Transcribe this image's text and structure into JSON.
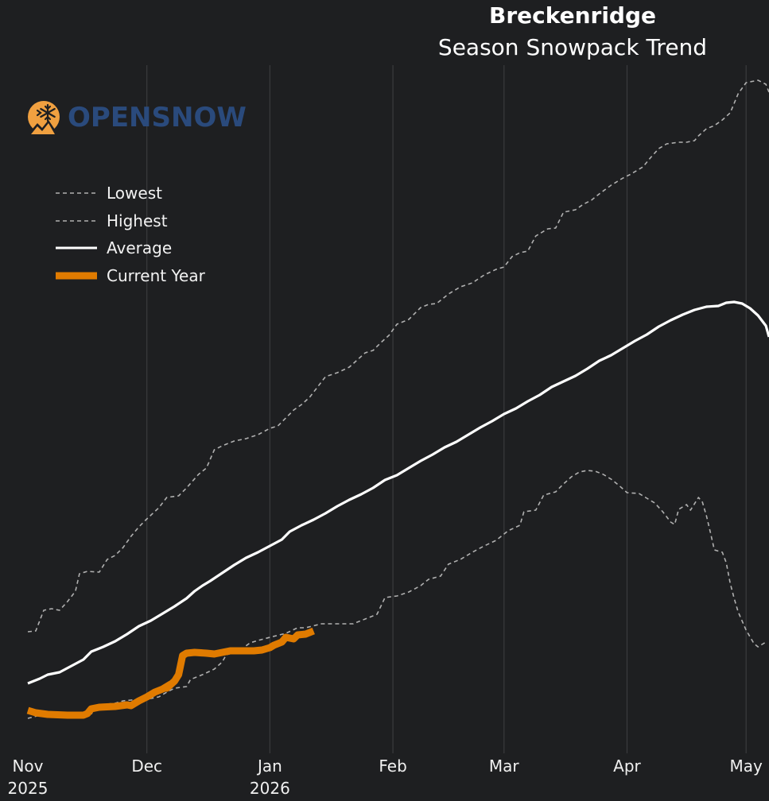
{
  "logo": {
    "text": "OPENSNOW",
    "icon": "snowflake-mountain-icon",
    "text_color": "#2a4a7c",
    "icon_color": "#f0a040"
  },
  "chart_data": {
    "type": "line",
    "title": "Breckenridge",
    "subtitle": "Season Snowpack Trend",
    "xlabel": "",
    "ylabel": "",
    "x_unit": "days since Nov 1, 2025",
    "y_unit": "relative snowpack (no axis scale shown)",
    "xlim": [
      0,
      187
    ],
    "ylim": [
      0,
      86
    ],
    "grid": "vertical",
    "legend_position": "top-left",
    "x_ticks": [
      {
        "day": 0,
        "label": "Nov",
        "sublabel": "2025"
      },
      {
        "day": 30,
        "label": "Dec",
        "sublabel": ""
      },
      {
        "day": 61,
        "label": "Jan",
        "sublabel": "2026"
      },
      {
        "day": 92,
        "label": "Feb",
        "sublabel": ""
      },
      {
        "day": 120,
        "label": "Mar",
        "sublabel": ""
      },
      {
        "day": 151,
        "label": "Apr",
        "sublabel": ""
      },
      {
        "day": 181,
        "label": "May",
        "sublabel": ""
      }
    ],
    "colors": {
      "background": "#1e1f21",
      "grid": "#3a3b3d",
      "lowest": "#b0b0b0",
      "highest": "#b0b0b0",
      "average": "#ffffff",
      "current": "#e07b00"
    },
    "series": [
      {
        "name": "Lowest",
        "style": "dashed",
        "points": [
          [
            0,
            3.6
          ],
          [
            3,
            4.0
          ],
          [
            6,
            3.8
          ],
          [
            10,
            3.8
          ],
          [
            14,
            4.0
          ],
          [
            16,
            4.1
          ],
          [
            17,
            5.2
          ],
          [
            20,
            5.4
          ],
          [
            22,
            5.5
          ],
          [
            24,
            5.8
          ],
          [
            26,
            5.9
          ],
          [
            28,
            6.0
          ],
          [
            30,
            6.0
          ],
          [
            33,
            6.3
          ],
          [
            35,
            6.9
          ],
          [
            37,
            7.4
          ],
          [
            40,
            7.6
          ],
          [
            41,
            8.5
          ],
          [
            44,
            9.1
          ],
          [
            47,
            9.8
          ],
          [
            49,
            10.7
          ],
          [
            50,
            11.6
          ],
          [
            53,
            12.0
          ],
          [
            56,
            13.1
          ],
          [
            58,
            13.4
          ],
          [
            61,
            13.8
          ],
          [
            65,
            14.3
          ],
          [
            68,
            15.0
          ],
          [
            70,
            15.0
          ],
          [
            74,
            15.5
          ],
          [
            78,
            15.5
          ],
          [
            82,
            15.5
          ],
          [
            86,
            16.3
          ],
          [
            88,
            16.7
          ],
          [
            90,
            18.8
          ],
          [
            93,
            19.0
          ],
          [
            96,
            19.5
          ],
          [
            99,
            20.3
          ],
          [
            101,
            21.1
          ],
          [
            104,
            21.5
          ],
          [
            106,
            23.0
          ],
          [
            109,
            23.6
          ],
          [
            112,
            24.5
          ],
          [
            115,
            25.3
          ],
          [
            118,
            26.0
          ],
          [
            121,
            27.2
          ],
          [
            124,
            27.9
          ],
          [
            125,
            29.6
          ],
          [
            128,
            29.8
          ],
          [
            130,
            31.7
          ],
          [
            133,
            32.1
          ],
          [
            135,
            33.1
          ],
          [
            137,
            34.0
          ],
          [
            139,
            34.6
          ],
          [
            141,
            34.8
          ],
          [
            143,
            34.7
          ],
          [
            145,
            34.3
          ],
          [
            147,
            33.7
          ],
          [
            149,
            32.9
          ],
          [
            151,
            32.0
          ],
          [
            154,
            31.9
          ],
          [
            156,
            31.3
          ],
          [
            158,
            30.7
          ],
          [
            160,
            29.6
          ],
          [
            162,
            28.3
          ],
          [
            163,
            28.0
          ],
          [
            164,
            29.9
          ],
          [
            166,
            30.5
          ],
          [
            167,
            29.8
          ],
          [
            169,
            31.4
          ],
          [
            170,
            30.8
          ],
          [
            171,
            29.1
          ],
          [
            172,
            27.0
          ],
          [
            173,
            24.8
          ],
          [
            175,
            24.5
          ],
          [
            176,
            23.2
          ],
          [
            177,
            20.6
          ],
          [
            178,
            18.7
          ],
          [
            179,
            17.0
          ],
          [
            181,
            14.7
          ],
          [
            183,
            13.0
          ],
          [
            184,
            12.6
          ],
          [
            186,
            13.2
          ]
        ]
      },
      {
        "name": "Highest",
        "style": "dashed",
        "points": [
          [
            0,
            14.5
          ],
          [
            2,
            14.6
          ],
          [
            4,
            17.2
          ],
          [
            6,
            17.4
          ],
          [
            8,
            17.2
          ],
          [
            10,
            18.3
          ],
          [
            12,
            19.6
          ],
          [
            13,
            21.8
          ],
          [
            15,
            22.1
          ],
          [
            18,
            22.0
          ],
          [
            20,
            23.6
          ],
          [
            22,
            24.1
          ],
          [
            24,
            25.1
          ],
          [
            26,
            26.5
          ],
          [
            28,
            27.7
          ],
          [
            30,
            28.7
          ],
          [
            33,
            30.1
          ],
          [
            35,
            31.4
          ],
          [
            38,
            31.6
          ],
          [
            40,
            32.6
          ],
          [
            43,
            34.3
          ],
          [
            45,
            35.1
          ],
          [
            47,
            37.4
          ],
          [
            49,
            37.9
          ],
          [
            52,
            38.5
          ],
          [
            55,
            38.8
          ],
          [
            58,
            39.3
          ],
          [
            61,
            40.1
          ],
          [
            63,
            40.4
          ],
          [
            65,
            41.4
          ],
          [
            67,
            42.4
          ],
          [
            69,
            43.1
          ],
          [
            71,
            44.0
          ],
          [
            73,
            45.3
          ],
          [
            75,
            46.6
          ],
          [
            78,
            47.1
          ],
          [
            81,
            47.8
          ],
          [
            85,
            49.6
          ],
          [
            87,
            49.9
          ],
          [
            89,
            50.9
          ],
          [
            91,
            51.8
          ],
          [
            93,
            53.2
          ],
          [
            96,
            53.8
          ],
          [
            99,
            55.3
          ],
          [
            101,
            55.7
          ],
          [
            103,
            55.8
          ],
          [
            106,
            57.0
          ],
          [
            109,
            57.9
          ],
          [
            112,
            58.4
          ],
          [
            115,
            59.4
          ],
          [
            118,
            60.1
          ],
          [
            120,
            60.4
          ],
          [
            122,
            61.7
          ],
          [
            124,
            62.2
          ],
          [
            126,
            62.4
          ],
          [
            128,
            64.3
          ],
          [
            131,
            65.2
          ],
          [
            133,
            65.3
          ],
          [
            135,
            67.3
          ],
          [
            138,
            67.6
          ],
          [
            140,
            68.3
          ],
          [
            142,
            68.8
          ],
          [
            144,
            69.6
          ],
          [
            147,
            70.7
          ],
          [
            150,
            71.6
          ],
          [
            152,
            72.1
          ],
          [
            155,
            73.0
          ],
          [
            157,
            74.2
          ],
          [
            159,
            75.3
          ],
          [
            161,
            75.9
          ],
          [
            164,
            76.1
          ],
          [
            166,
            76.1
          ],
          [
            168,
            76.3
          ],
          [
            169,
            76.9
          ],
          [
            171,
            77.8
          ],
          [
            173,
            78.2
          ],
          [
            175,
            78.9
          ],
          [
            177,
            79.8
          ],
          [
            178,
            81.0
          ],
          [
            179,
            82.2
          ],
          [
            181,
            83.6
          ],
          [
            184,
            83.9
          ],
          [
            186,
            83.4
          ],
          [
            187,
            82.4
          ]
        ]
      },
      {
        "name": "Average",
        "style": "solid",
        "points": [
          [
            0,
            8.0
          ],
          [
            3,
            8.6
          ],
          [
            5,
            9.1
          ],
          [
            8,
            9.4
          ],
          [
            11,
            10.2
          ],
          [
            14,
            11.0
          ],
          [
            16,
            12.0
          ],
          [
            19,
            12.6
          ],
          [
            22,
            13.3
          ],
          [
            25,
            14.2
          ],
          [
            28,
            15.2
          ],
          [
            31,
            15.9
          ],
          [
            34,
            16.8
          ],
          [
            37,
            17.7
          ],
          [
            40,
            18.7
          ],
          [
            42,
            19.6
          ],
          [
            44,
            20.3
          ],
          [
            46,
            20.9
          ],
          [
            49,
            21.9
          ],
          [
            52,
            22.9
          ],
          [
            55,
            23.8
          ],
          [
            58,
            24.5
          ],
          [
            61,
            25.3
          ],
          [
            64,
            26.1
          ],
          [
            66,
            27.1
          ],
          [
            69,
            27.9
          ],
          [
            72,
            28.6
          ],
          [
            75,
            29.4
          ],
          [
            78,
            30.3
          ],
          [
            81,
            31.1
          ],
          [
            84,
            31.8
          ],
          [
            87,
            32.6
          ],
          [
            90,
            33.6
          ],
          [
            93,
            34.2
          ],
          [
            96,
            35.1
          ],
          [
            99,
            36.0
          ],
          [
            102,
            36.8
          ],
          [
            105,
            37.7
          ],
          [
            108,
            38.4
          ],
          [
            111,
            39.3
          ],
          [
            114,
            40.2
          ],
          [
            117,
            41.0
          ],
          [
            120,
            41.9
          ],
          [
            123,
            42.6
          ],
          [
            126,
            43.5
          ],
          [
            129,
            44.3
          ],
          [
            132,
            45.3
          ],
          [
            135,
            46.0
          ],
          [
            138,
            46.7
          ],
          [
            141,
            47.6
          ],
          [
            144,
            48.6
          ],
          [
            147,
            49.3
          ],
          [
            150,
            50.2
          ],
          [
            153,
            51.1
          ],
          [
            156,
            51.9
          ],
          [
            159,
            52.9
          ],
          [
            162,
            53.7
          ],
          [
            165,
            54.4
          ],
          [
            168,
            55.0
          ],
          [
            171,
            55.4
          ],
          [
            174,
            55.5
          ],
          [
            176,
            55.9
          ],
          [
            178,
            56.0
          ],
          [
            180,
            55.8
          ],
          [
            182,
            55.2
          ],
          [
            184,
            54.3
          ],
          [
            186,
            53.0
          ],
          [
            187,
            51.6
          ]
        ]
      },
      {
        "name": "Current Year",
        "style": "solid-thick",
        "points": [
          [
            0,
            4.6
          ],
          [
            2,
            4.3
          ],
          [
            5,
            4.1
          ],
          [
            10,
            4.0
          ],
          [
            14,
            4.0
          ],
          [
            15,
            4.2
          ],
          [
            16,
            4.8
          ],
          [
            18,
            5.0
          ],
          [
            22,
            5.1
          ],
          [
            25,
            5.3
          ],
          [
            26,
            5.2
          ],
          [
            28,
            5.8
          ],
          [
            30,
            6.3
          ],
          [
            32,
            6.9
          ],
          [
            34,
            7.3
          ],
          [
            36,
            7.9
          ],
          [
            35,
            7.4
          ],
          [
            37,
            8.3
          ],
          [
            38,
            9.1
          ],
          [
            39,
            11.5
          ],
          [
            40,
            11.8
          ],
          [
            42,
            11.9
          ],
          [
            45,
            11.8
          ],
          [
            47,
            11.7
          ],
          [
            49,
            11.9
          ],
          [
            51,
            12.1
          ],
          [
            54,
            12.1
          ],
          [
            57,
            12.1
          ],
          [
            59,
            12.2
          ],
          [
            61,
            12.5
          ],
          [
            62,
            12.8
          ],
          [
            64,
            13.2
          ],
          [
            65,
            13.8
          ],
          [
            67,
            13.6
          ],
          [
            68,
            14.1
          ],
          [
            70,
            14.2
          ],
          [
            72,
            14.6
          ]
        ]
      }
    ]
  }
}
